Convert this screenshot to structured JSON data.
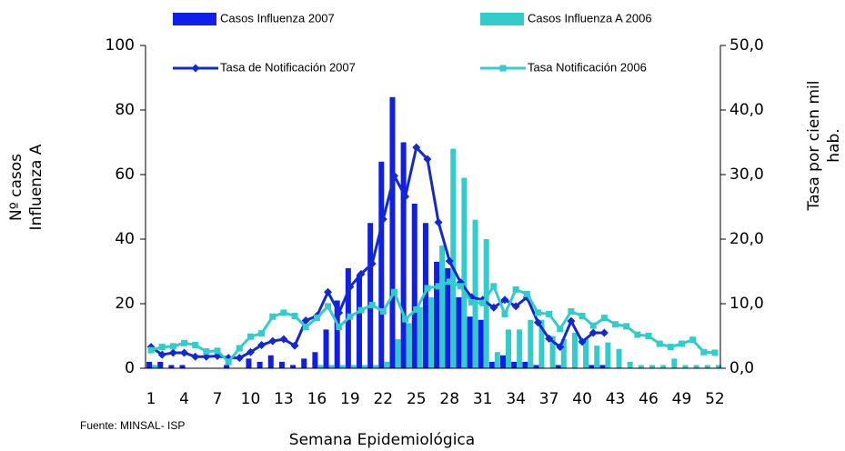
{
  "chart_data": {
    "type": "bar_line",
    "y_label": [
      "Nº casos",
      "Influenza A"
    ],
    "y2_label": [
      "Tasa por cien mil",
      "hab."
    ],
    "x_label": "Semana Epidemiológica",
    "note": "Fuente: MINSAL- ISP",
    "categories": [
      1,
      null,
      null,
      4,
      null,
      null,
      7,
      null,
      null,
      10,
      null,
      null,
      13,
      null,
      null,
      16,
      null,
      null,
      19,
      null,
      null,
      22,
      null,
      null,
      25,
      null,
      null,
      28,
      null,
      null,
      31,
      null,
      null,
      34,
      null,
      null,
      37,
      null,
      null,
      40,
      null,
      null,
      43,
      null,
      null,
      46,
      null,
      null,
      49,
      null,
      null,
      52
    ],
    "ylim": [
      0,
      100
    ],
    "yticks": [
      0,
      20,
      40,
      60,
      80,
      100
    ],
    "y2lim": [
      0,
      50
    ],
    "y2ticks": [
      {
        "value": 0,
        "label": "0,0"
      },
      {
        "value": 10,
        "label": "10,0"
      },
      {
        "value": 20,
        "label": "20,0"
      },
      {
        "value": 30,
        "label": "30,0"
      },
      {
        "value": 40,
        "label": "40,0"
      },
      {
        "value": 50,
        "label": "50,0"
      }
    ],
    "series": [
      {
        "name": "Casos Influenza 2007",
        "kind": "bar",
        "color": "#0f1ee8",
        "values": [
          2,
          2,
          1,
          1,
          0,
          0,
          0,
          1,
          0,
          3,
          2,
          4,
          2,
          1,
          3,
          5,
          12,
          21,
          31,
          29,
          45,
          64,
          84,
          70,
          51,
          45,
          33,
          31,
          22,
          16,
          15,
          2,
          4,
          2,
          2,
          1,
          0,
          1,
          0,
          0,
          1,
          1,
          null,
          null,
          null,
          null,
          null,
          null,
          null,
          null,
          null,
          null
        ]
      },
      {
        "name": "Casos Influenza A 2006",
        "kind": "bar",
        "color": "#33cccc",
        "values": [
          1,
          0,
          0,
          0,
          0,
          0,
          0,
          0,
          0,
          0,
          0,
          0,
          0,
          0,
          0,
          1,
          1,
          1,
          1,
          1,
          1,
          2,
          9,
          14,
          19,
          22,
          38,
          68,
          59,
          46,
          40,
          5,
          12,
          12,
          15,
          15,
          10,
          9,
          11,
          9,
          7,
          8,
          6,
          2,
          1,
          1,
          1,
          3,
          1,
          1,
          1,
          1
        ]
      },
      {
        "name": "Tasa de Notificación 2007",
        "kind": "line",
        "marker": "diamond",
        "axis": "y2",
        "color": "#1428d2",
        "values": [
          3.3,
          2.1,
          2.4,
          2.4,
          1.8,
          1.8,
          1.9,
          1.6,
          1.6,
          2.5,
          3.6,
          4.2,
          4.5,
          3.5,
          7.4,
          8.1,
          11.8,
          8.6,
          12.6,
          14.6,
          16.2,
          23.1,
          29.8,
          26.6,
          34.2,
          32.4,
          22.6,
          16.6,
          13.3,
          11.0,
          10.6,
          9.4,
          10.6,
          9.6,
          11.0,
          7.1,
          4.6,
          3.3,
          7.3,
          4.1,
          5.5,
          5.5,
          null,
          null,
          null,
          null,
          null,
          null,
          null,
          null,
          null,
          null
        ]
      },
      {
        "name": "Tasa Notificación 2006",
        "kind": "line",
        "marker": "square",
        "axis": "y2",
        "color": "#33cccc",
        "values": [
          2.8,
          3.3,
          3.4,
          3.9,
          3.6,
          2.6,
          2.7,
          1.0,
          3.1,
          4.9,
          5.4,
          8.0,
          8.6,
          8.1,
          6.4,
          7.8,
          9.6,
          6.4,
          8.0,
          9.0,
          9.8,
          8.8,
          11.8,
          7.6,
          9.1,
          12.4,
          12.7,
          13.4,
          12.7,
          10.2,
          10.1,
          12.7,
          8.4,
          12.2,
          11.5,
          8.6,
          8.4,
          6.1,
          8.8,
          8.1,
          6.6,
          7.8,
          6.8,
          6.5,
          5.2,
          5.0,
          3.8,
          3.3,
          3.8,
          4.4,
          2.5,
          2.4
        ]
      }
    ]
  }
}
